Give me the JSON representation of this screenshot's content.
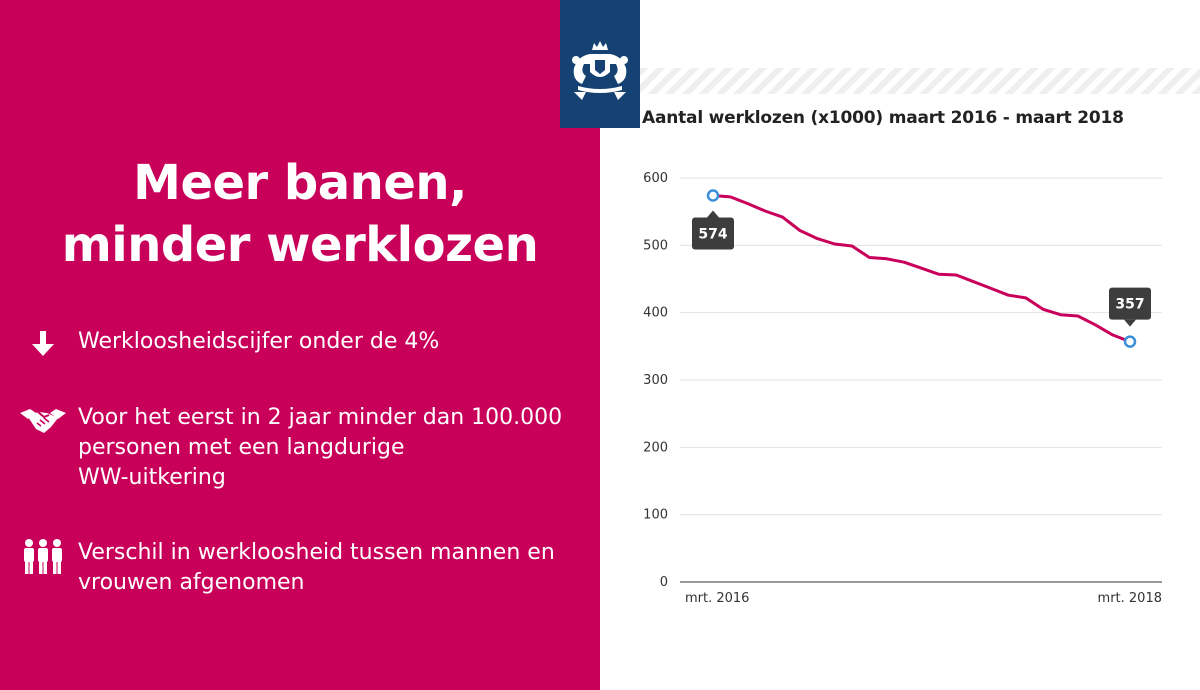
{
  "headline": {
    "line1": "Meer banen,",
    "line2": "minder werklozen"
  },
  "bullets": [
    {
      "icon": "arrow-down-icon",
      "text": "Werkloosheidscijfer onder de 4%"
    },
    {
      "icon": "handshake-icon",
      "lines": [
        "Voor het eerst in 2 jaar minder dan 100.000",
        "personen met een langdurige",
        "WW-uitkering"
      ]
    },
    {
      "icon": "people-icon",
      "lines": [
        "Verschil in werkloosheid tussen mannen en",
        "vrouwen afgenomen"
      ]
    }
  ],
  "logo": {
    "icon": "rijksoverheid-coat-of-arms-icon"
  },
  "colors": {
    "brand": "#c9005a",
    "logo_bg": "#154273",
    "line": "#c9005a",
    "marker": "#3a8fd9",
    "tooltip_bg": "#3d3d3d"
  },
  "chart_data": {
    "type": "line",
    "title": "Aantal werklozen (x1000) maart 2016 - maart 2018",
    "xlabel": "",
    "ylabel": "",
    "ylim": [
      0,
      600
    ],
    "yticks": [
      0,
      100,
      200,
      300,
      400,
      500,
      600
    ],
    "xtick_labels": [
      "mrt. 2016",
      "mrt. 2018"
    ],
    "grid": true,
    "series": [
      {
        "values": [
          574,
          572,
          562,
          551,
          542,
          522,
          510,
          502,
          499,
          482,
          480,
          475,
          466,
          457,
          456,
          446,
          436,
          426,
          422,
          405,
          397,
          395,
          382,
          367,
          357
        ]
      }
    ],
    "annotations": [
      {
        "index": 0,
        "label": "574"
      },
      {
        "index": 24,
        "label": "357"
      }
    ]
  }
}
